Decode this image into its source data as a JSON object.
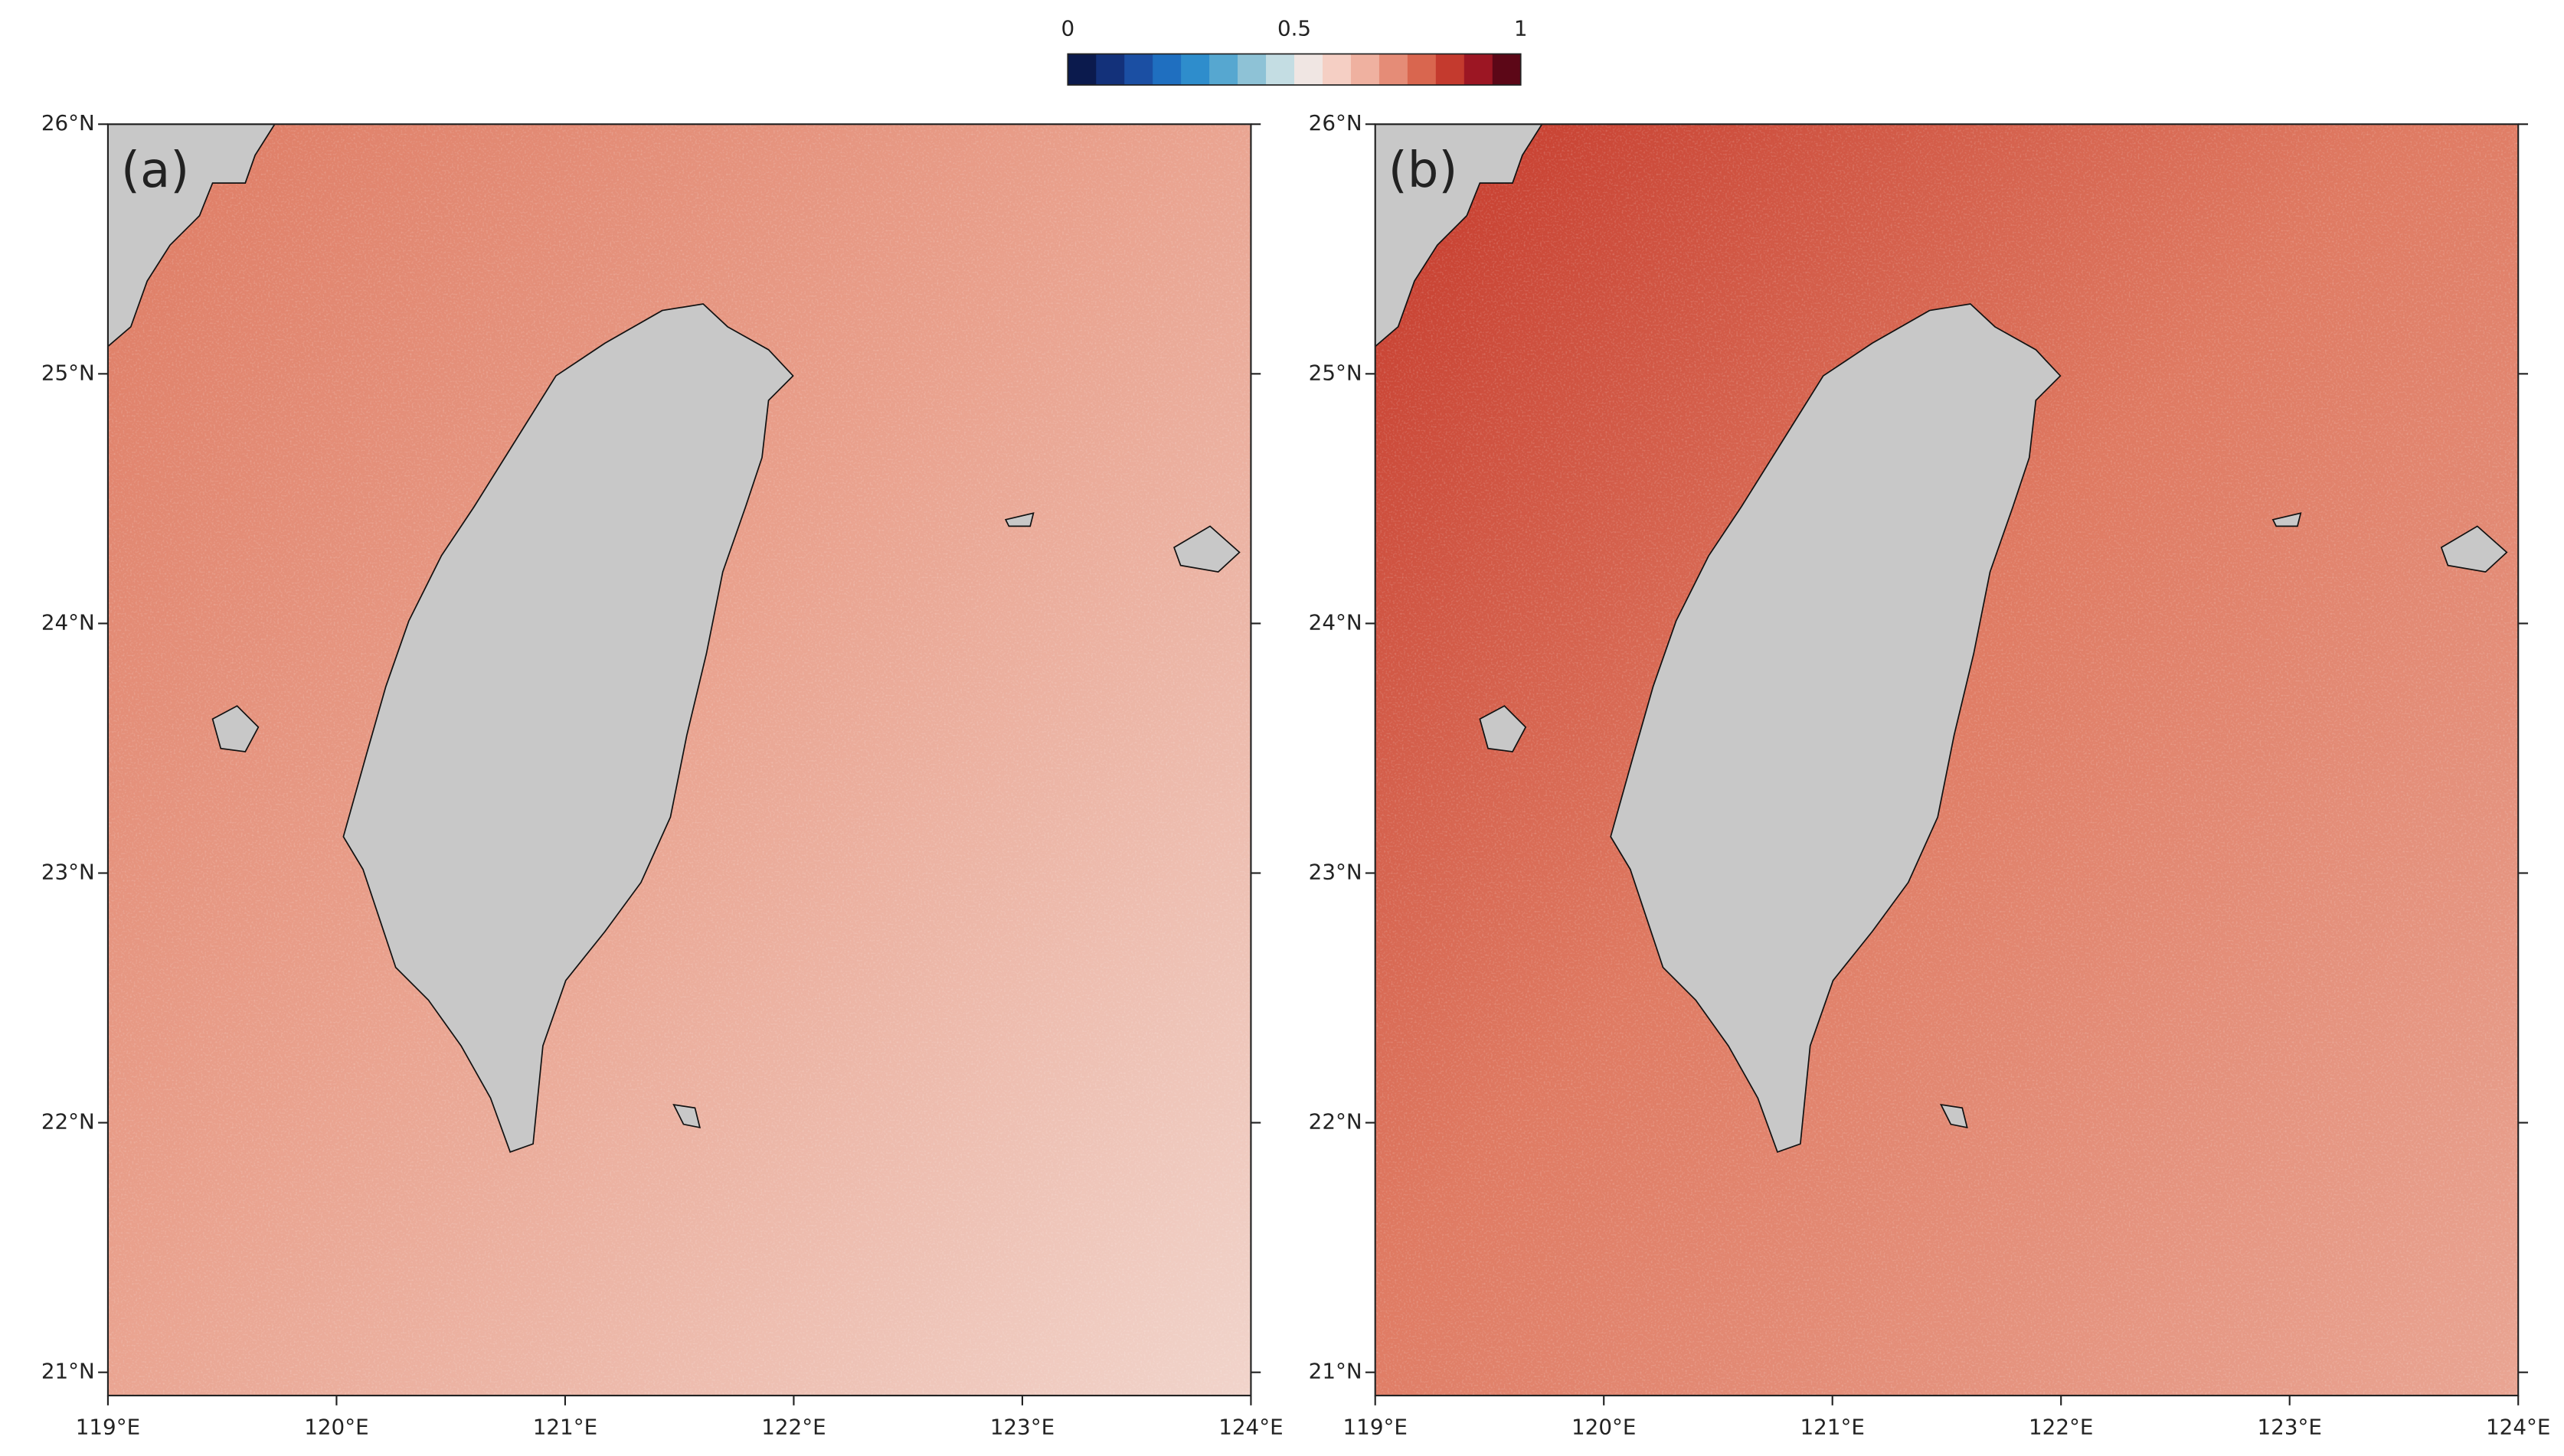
{
  "colorbar": {
    "range": [
      0,
      1
    ],
    "ticks": [
      0,
      0.5,
      1
    ],
    "colors": [
      "#0b1a4d",
      "#13317a",
      "#1b4fa3",
      "#1f6fc0",
      "#2e8dcc",
      "#56a7d0",
      "#8ec2d6",
      "#c4dde3",
      "#f0e6e3",
      "#f5cfc4",
      "#efb1a0",
      "#e58c77",
      "#d9664f",
      "#c43a2e",
      "#9c1623",
      "#5c0717"
    ]
  },
  "map": {
    "lon_range": [
      119,
      124
    ],
    "lat_range": [
      20.907,
      26
    ],
    "lat_ticks": [
      {
        "value": 21,
        "label": "21°N"
      },
      {
        "value": 22,
        "label": "22°N"
      },
      {
        "value": 23,
        "label": "23°N"
      },
      {
        "value": 24,
        "label": "24°N"
      },
      {
        "value": 25,
        "label": "25°N"
      },
      {
        "value": 26,
        "label": "26°N"
      }
    ],
    "lon_ticks": [
      {
        "value": 119,
        "label": "119°E"
      },
      {
        "value": 120,
        "label": "120°E"
      },
      {
        "value": 121,
        "label": "121°E"
      },
      {
        "value": 122,
        "label": "122°E"
      },
      {
        "value": 123,
        "label": "123°E"
      },
      {
        "value": 124,
        "label": "124°E"
      }
    ]
  },
  "panels": [
    {
      "label": "(a)",
      "base": "#e9a08c",
      "dark": "#de7a62",
      "light": "#f1d4cb"
    },
    {
      "label": "(b)",
      "base": "#df7a62",
      "dark": "#c5392b",
      "light": "#e9a593"
    }
  ]
}
